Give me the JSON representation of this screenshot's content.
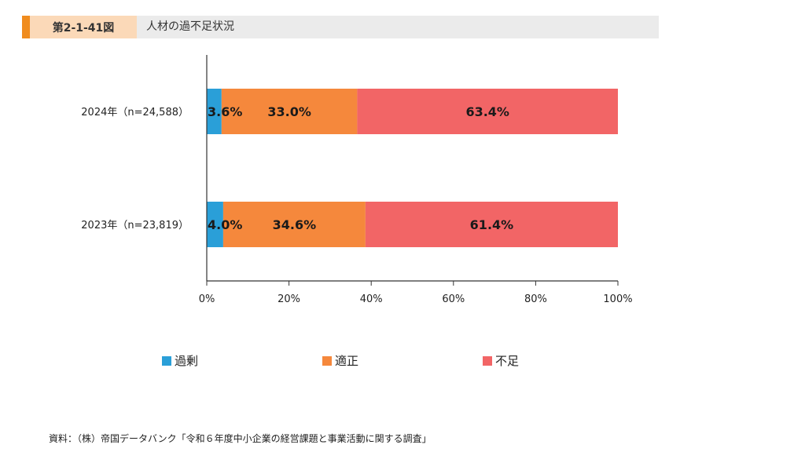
{
  "header": {
    "figure_number": "第2-1-41図",
    "title": "人材の過不足状況"
  },
  "colors": {
    "header_accent": "#f08c1e",
    "header_figno_bg": "#fbd9b8",
    "header_bg": "#ebebeb"
  },
  "chart_data": {
    "type": "bar",
    "orientation": "horizontal",
    "stacked": true,
    "percent": true,
    "categories": [
      "2024年（n=24,588）",
      "2023年（n=23,819）"
    ],
    "series": [
      {
        "name": "過剰",
        "color": "#2a9fd8",
        "values": [
          3.6,
          4.0
        ],
        "labels": [
          "3.6%",
          "4.0%"
        ]
      },
      {
        "name": "適正",
        "color": "#f5883c",
        "values": [
          33.0,
          34.6
        ],
        "labels": [
          "33.0%",
          "34.6%"
        ]
      },
      {
        "name": "不足",
        "color": "#f26566",
        "values": [
          63.4,
          61.4
        ],
        "labels": [
          "63.4%",
          "61.4%"
        ]
      }
    ],
    "xlim": [
      0,
      100
    ],
    "x_ticks": [
      0,
      20,
      40,
      60,
      80,
      100
    ],
    "x_tick_labels": [
      "0%",
      "20%",
      "40%",
      "60%",
      "80%",
      "100%"
    ],
    "grid": false,
    "legend_position": "bottom"
  },
  "source": "資料：（株）帝国データバンク「令和６年度中小企業の経営課題と事業活動に関する調査」"
}
